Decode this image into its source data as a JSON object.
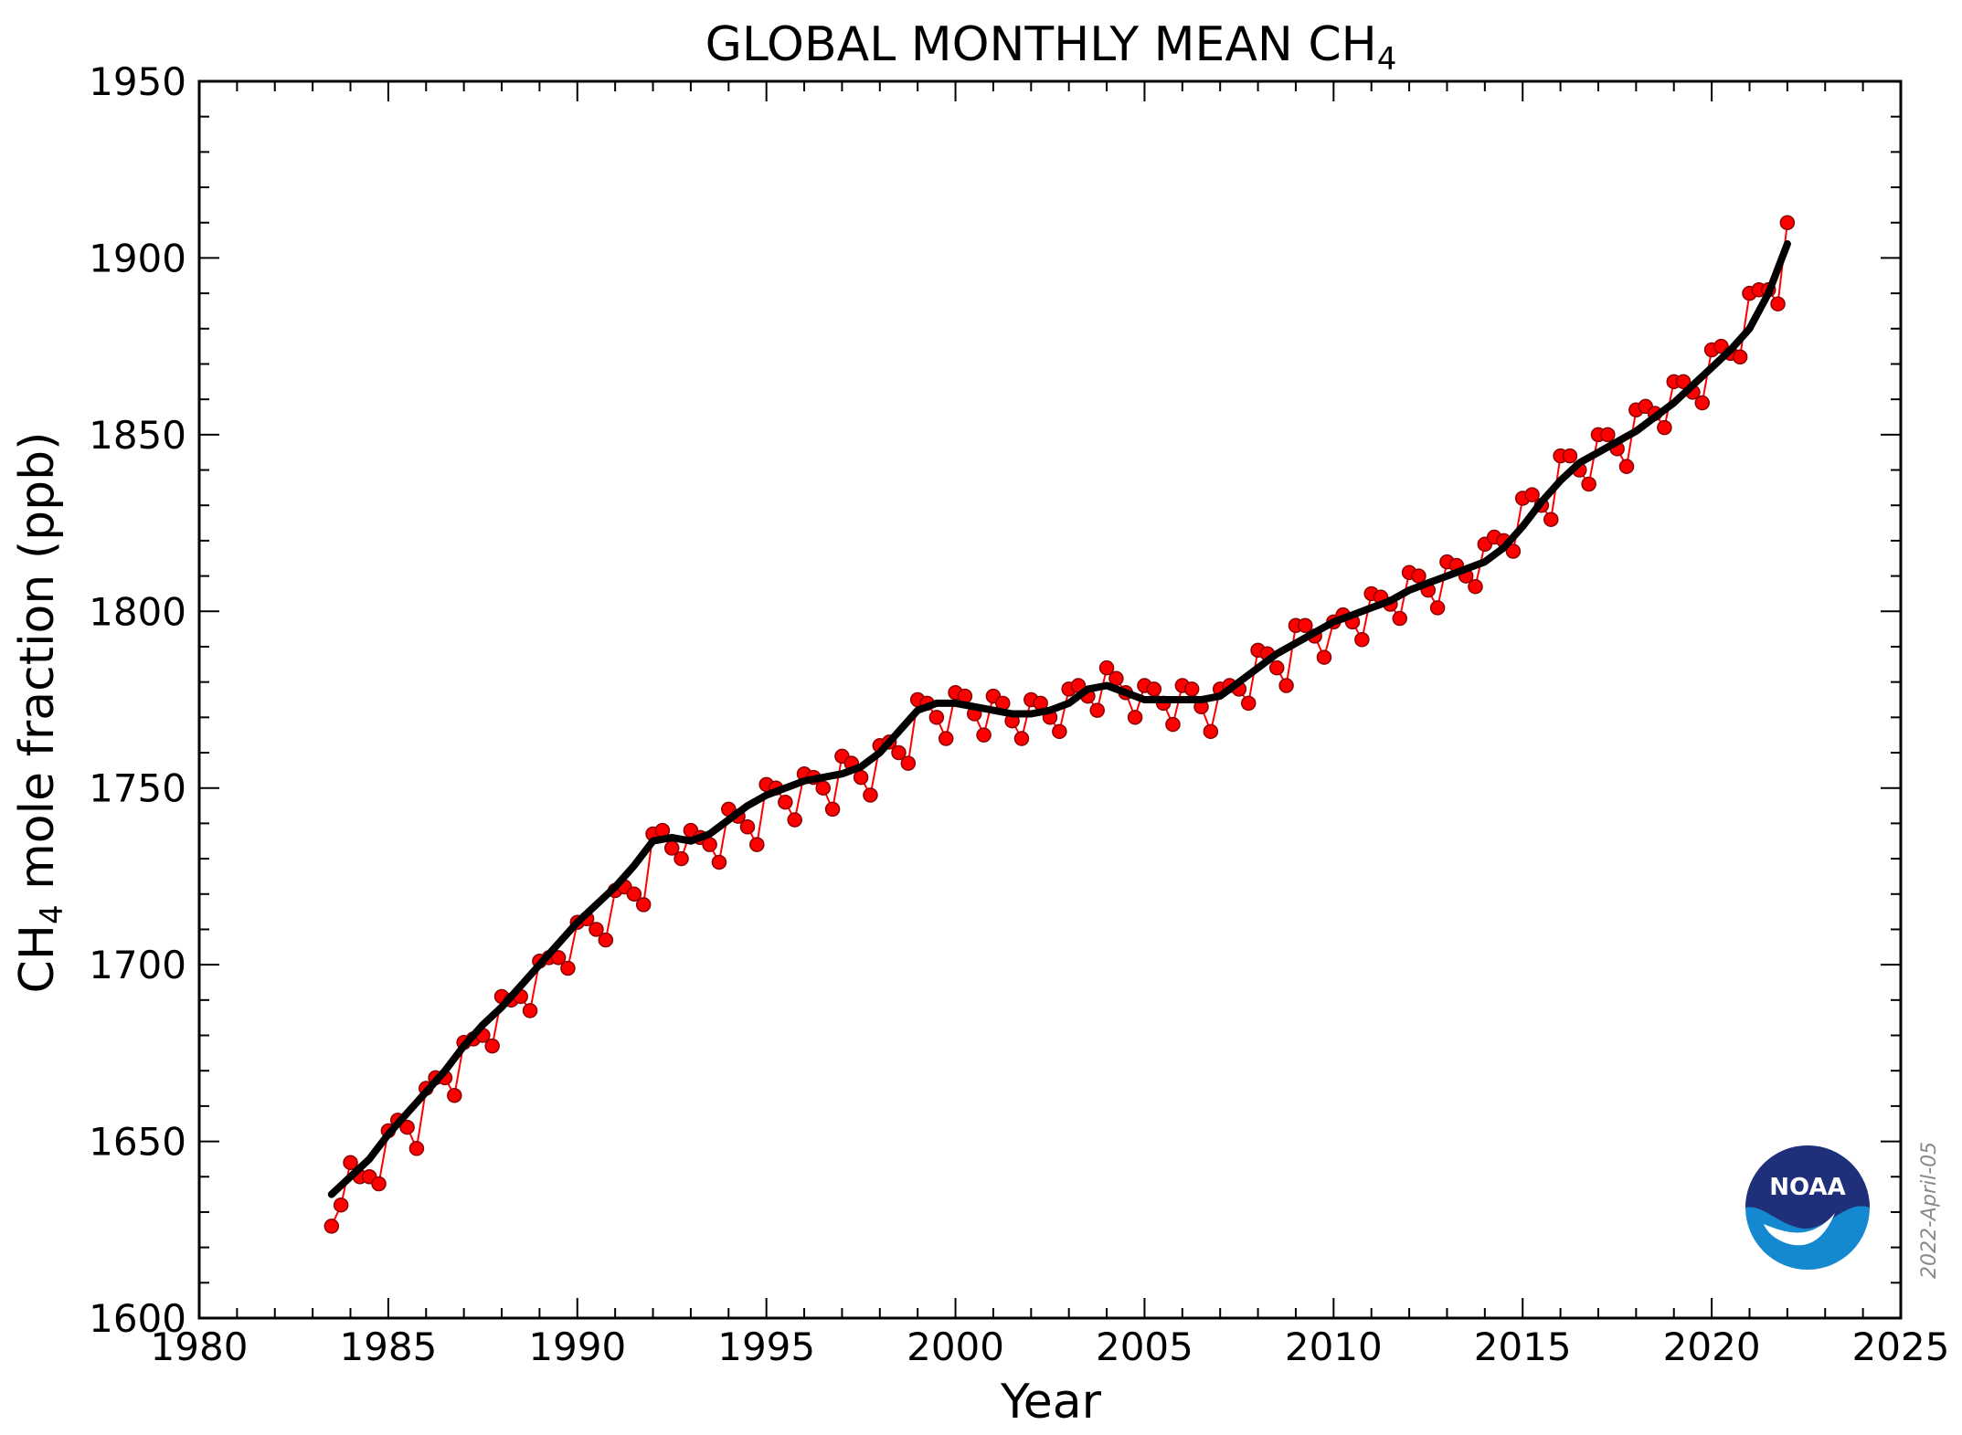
{
  "chart_data": {
    "type": "line",
    "title": "GLOBAL MONTHLY MEAN CH",
    "title_sub": "4",
    "xlabel": "Year",
    "ylabel_prefix": "CH",
    "ylabel_sub": "4",
    "ylabel_suffix": " mole fraction (ppb)",
    "xlim": [
      1980,
      2025
    ],
    "ylim": [
      1600,
      1950
    ],
    "x_ticks": [
      1980,
      1985,
      1990,
      1995,
      2000,
      2005,
      2010,
      2015,
      2020,
      2025
    ],
    "y_ticks": [
      1600,
      1650,
      1700,
      1750,
      1800,
      1850,
      1900,
      1950
    ],
    "x_tick_labels": [
      "1980",
      "1985",
      "1990",
      "1995",
      "2000",
      "2005",
      "2010",
      "2015",
      "2020",
      "2025"
    ],
    "y_tick_labels": [
      "1600",
      "1650",
      "1700",
      "1750",
      "1800",
      "1850",
      "1900",
      "1950"
    ],
    "grid": false,
    "date_stamp": "2022-April-05",
    "logo_text": "NOAA",
    "colors": {
      "monthly": "#ff0000",
      "monthly_edge": "#8b0000",
      "trend": "#000000",
      "logo_top": "#1f2f7a",
      "logo_bottom": "#1589d0"
    },
    "series": [
      {
        "name": "",
        "style": "monthly-points",
        "x": [
          1983.5,
          1983.75,
          1984.0,
          1984.25,
          1984.5,
          1984.75,
          1985.0,
          1985.25,
          1985.5,
          1985.75,
          1986.0,
          1986.25,
          1986.5,
          1986.75,
          1987.0,
          1987.25,
          1987.5,
          1987.75,
          1988.0,
          1988.25,
          1988.5,
          1988.75,
          1989.0,
          1989.25,
          1989.5,
          1989.75,
          1990.0,
          1990.25,
          1990.5,
          1990.75,
          1991.0,
          1991.25,
          1991.5,
          1991.75,
          1992.0,
          1992.25,
          1992.5,
          1992.75,
          1993.0,
          1993.25,
          1993.5,
          1993.75,
          1994.0,
          1994.25,
          1994.5,
          1994.75,
          1995.0,
          1995.25,
          1995.5,
          1995.75,
          1996.0,
          1996.25,
          1996.5,
          1996.75,
          1997.0,
          1997.25,
          1997.5,
          1997.75,
          1998.0,
          1998.25,
          1998.5,
          1998.75,
          1999.0,
          1999.25,
          1999.5,
          1999.75,
          2000.0,
          2000.25,
          2000.5,
          2000.75,
          2001.0,
          2001.25,
          2001.5,
          2001.75,
          2002.0,
          2002.25,
          2002.5,
          2002.75,
          2003.0,
          2003.25,
          2003.5,
          2003.75,
          2004.0,
          2004.25,
          2004.5,
          2004.75,
          2005.0,
          2005.25,
          2005.5,
          2005.75,
          2006.0,
          2006.25,
          2006.5,
          2006.75,
          2007.0,
          2007.25,
          2007.5,
          2007.75,
          2008.0,
          2008.25,
          2008.5,
          2008.75,
          2009.0,
          2009.25,
          2009.5,
          2009.75,
          2010.0,
          2010.25,
          2010.5,
          2010.75,
          2011.0,
          2011.25,
          2011.5,
          2011.75,
          2012.0,
          2012.25,
          2012.5,
          2012.75,
          2013.0,
          2013.25,
          2013.5,
          2013.75,
          2014.0,
          2014.25,
          2014.5,
          2014.75,
          2015.0,
          2015.25,
          2015.5,
          2015.75,
          2016.0,
          2016.25,
          2016.5,
          2016.75,
          2017.0,
          2017.25,
          2017.5,
          2017.75,
          2018.0,
          2018.25,
          2018.5,
          2018.75,
          2019.0,
          2019.25,
          2019.5,
          2019.75,
          2020.0,
          2020.25,
          2020.5,
          2020.75,
          2021.0,
          2021.25,
          2021.5,
          2021.75,
          2022.0
        ],
        "y": [
          1626,
          1632,
          1644,
          1640,
          1640,
          1638,
          1653,
          1656,
          1654,
          1648,
          1665,
          1668,
          1668,
          1663,
          1678,
          1679,
          1680,
          1677,
          1691,
          1690,
          1691,
          1687,
          1701,
          1702,
          1702,
          1699,
          1712,
          1713,
          1710,
          1707,
          1721,
          1722,
          1720,
          1717,
          1737,
          1738,
          1733,
          1730,
          1738,
          1736,
          1734,
          1729,
          1744,
          1742,
          1739,
          1734,
          1751,
          1750,
          1746,
          1741,
          1754,
          1753,
          1750,
          1744,
          1759,
          1757,
          1753,
          1748,
          1762,
          1763,
          1760,
          1757,
          1775,
          1774,
          1770,
          1764,
          1777,
          1776,
          1771,
          1765,
          1776,
          1774,
          1769,
          1764,
          1775,
          1774,
          1770,
          1766,
          1778,
          1779,
          1776,
          1772,
          1784,
          1781,
          1777,
          1770,
          1779,
          1778,
          1774,
          1768,
          1779,
          1778,
          1773,
          1766,
          1778,
          1779,
          1778,
          1774,
          1789,
          1788,
          1784,
          1779,
          1796,
          1796,
          1793,
          1787,
          1797,
          1799,
          1797,
          1792,
          1805,
          1804,
          1802,
          1798,
          1811,
          1810,
          1806,
          1801,
          1814,
          1813,
          1810,
          1807,
          1819,
          1821,
          1820,
          1817,
          1832,
          1833,
          1830,
          1826,
          1844,
          1844,
          1840,
          1836,
          1850,
          1850,
          1846,
          1841,
          1857,
          1858,
          1856,
          1852,
          1865,
          1865,
          1862,
          1859,
          1874,
          1875,
          1873,
          1872,
          1890,
          1891,
          1891,
          1887,
          1910
        ]
      },
      {
        "name": "",
        "style": "trend-line",
        "x": [
          1983.5,
          1984.0,
          1984.5,
          1985.0,
          1985.5,
          1986.0,
          1986.5,
          1987.0,
          1987.5,
          1988.0,
          1988.5,
          1989.0,
          1989.5,
          1990.0,
          1990.5,
          1991.0,
          1991.5,
          1992.0,
          1992.5,
          1993.0,
          1993.5,
          1994.0,
          1994.5,
          1995.0,
          1995.5,
          1996.0,
          1996.5,
          1997.0,
          1997.5,
          1998.0,
          1998.5,
          1999.0,
          1999.5,
          2000.0,
          2000.5,
          2001.0,
          2001.5,
          2002.0,
          2002.5,
          2003.0,
          2003.5,
          2004.0,
          2004.5,
          2005.0,
          2005.5,
          2006.0,
          2006.5,
          2007.0,
          2007.5,
          2008.0,
          2008.5,
          2009.0,
          2009.5,
          2010.0,
          2010.5,
          2011.0,
          2011.5,
          2012.0,
          2012.5,
          2013.0,
          2013.5,
          2014.0,
          2014.5,
          2015.0,
          2015.5,
          2016.0,
          2016.5,
          2017.0,
          2017.5,
          2018.0,
          2018.5,
          2019.0,
          2019.5,
          2020.0,
          2020.5,
          2021.0,
          2021.5,
          2022.0
        ],
        "y": [
          1635,
          1640,
          1645,
          1652,
          1658,
          1664,
          1670,
          1677,
          1683,
          1688,
          1694,
          1700,
          1706,
          1712,
          1717,
          1722,
          1728,
          1735,
          1736,
          1735,
          1737,
          1741,
          1745,
          1748,
          1750,
          1752,
          1753,
          1754,
          1756,
          1760,
          1766,
          1772,
          1774,
          1774,
          1773,
          1772,
          1771,
          1771,
          1772,
          1774,
          1778,
          1779,
          1777,
          1775,
          1775,
          1775,
          1775,
          1776,
          1780,
          1784,
          1788,
          1791,
          1794,
          1797,
          1799,
          1801,
          1803,
          1806,
          1808,
          1810,
          1812,
          1814,
          1818,
          1824,
          1831,
          1837,
          1842,
          1845,
          1848,
          1851,
          1855,
          1859,
          1864,
          1869,
          1874,
          1880,
          1890,
          1904
        ]
      }
    ]
  }
}
